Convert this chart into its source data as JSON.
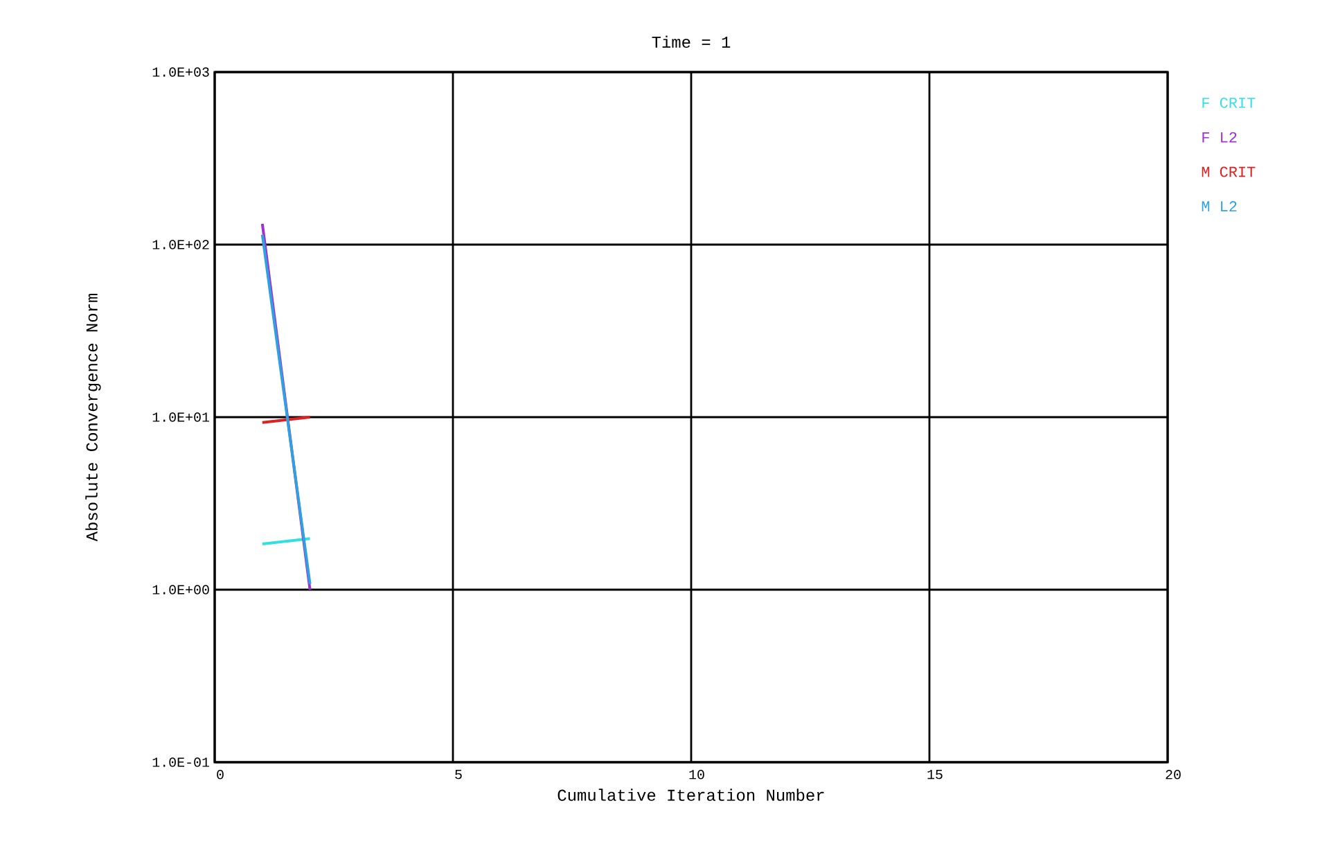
{
  "chart_data": {
    "type": "line",
    "title": "Time = 1",
    "xlabel": "Cumulative Iteration Number",
    "ylabel": "Absolute Convergence Norm",
    "x": [
      1,
      2
    ],
    "series": [
      {
        "name": "F CRIT",
        "color": "#33e0e0",
        "values": [
          1.84,
          1.98
        ]
      },
      {
        "name": "F L2",
        "color": "#a030d0",
        "values": [
          132,
          1.0
        ]
      },
      {
        "name": "M CRIT",
        "color": "#e02020",
        "values": [
          9.3,
          10
        ]
      },
      {
        "name": "M L2",
        "color": "#30a0e0",
        "values": [
          114,
          1.08
        ]
      }
    ],
    "xlim": [
      0,
      20
    ],
    "xticks": [
      0,
      5,
      10,
      15,
      20
    ],
    "ylim": [
      0.1,
      1000
    ],
    "yticks": [
      {
        "value": 0.1,
        "label": "1.0E-01"
      },
      {
        "value": 1,
        "label": "1.0E+00"
      },
      {
        "value": 10,
        "label": "1.0E+01"
      },
      {
        "value": 100,
        "label": "1.0E+02"
      },
      {
        "value": 1000,
        "label": "1.0E+03"
      }
    ],
    "log": "y",
    "grid": true,
    "legend": "right",
    "marker": "none",
    "line_style": "solid"
  }
}
